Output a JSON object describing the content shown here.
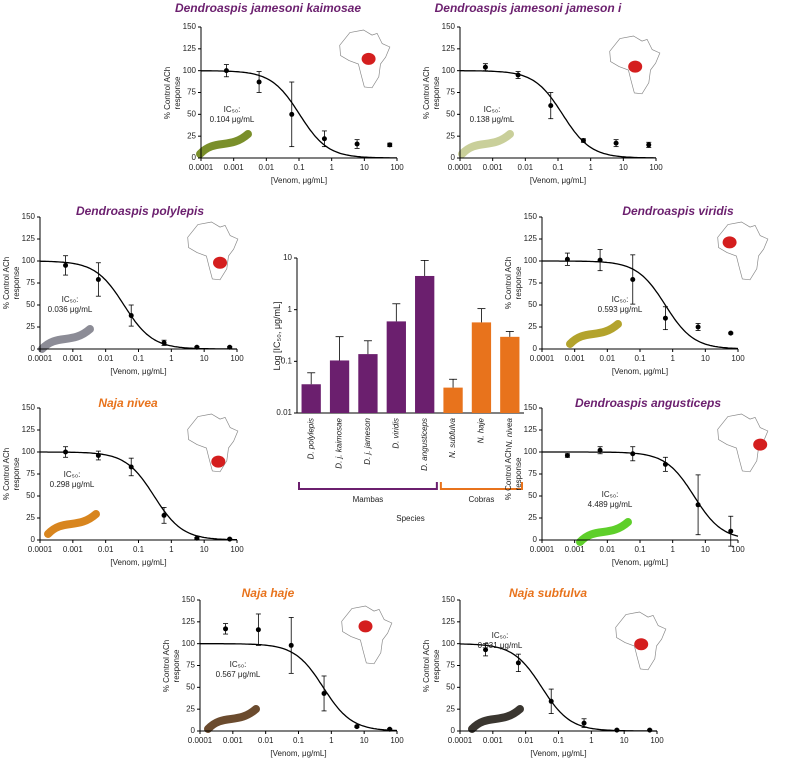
{
  "chart_data": [
    {
      "type": "scatter",
      "title": "Dendroaspis jamesoni kaimosae",
      "title_color": "#6b1f6e",
      "x_label": "[Venom, μg/mL]",
      "y_label": "% Control ACh response",
      "xscale": "log",
      "x": [
        0.0006,
        0.006,
        0.06,
        0.6,
        6,
        60
      ],
      "values": [
        100,
        87,
        50,
        22,
        16,
        15
      ],
      "errors": [
        7,
        12,
        37,
        9,
        5,
        2
      ],
      "color": "#000000",
      "ic50_label": "IC₅₀:",
      "ic50": {
        "value": 0.104,
        "label": "0.104 μg/mL"
      },
      "xlim": [
        0.0001,
        100
      ],
      "xticks": [
        0.0001,
        0.001,
        0.01,
        0.1,
        1,
        10,
        100
      ],
      "ylim": [
        0,
        150
      ],
      "yticks": [
        0,
        25,
        50,
        75,
        100,
        125,
        150
      ]
    },
    {
      "type": "scatter",
      "title": "Dendroaspis jamesoni jameson i",
      "title_color": "#6b1f6e",
      "x_label": "[Venom, μg/mL]",
      "y_label": "% Control ACh response",
      "xscale": "log",
      "x": [
        0.0006,
        0.006,
        0.06,
        0.6,
        6,
        60
      ],
      "values": [
        104,
        95,
        60,
        20,
        17,
        15
      ],
      "errors": [
        4,
        4,
        15,
        2,
        4,
        3
      ],
      "color": "#000000",
      "ic50_label": "IC₅₀:",
      "ic50": {
        "value": 0.138,
        "label": "0.138 μg/mL"
      },
      "xlim": [
        0.0001,
        100
      ],
      "xticks": [
        0.0001,
        0.001,
        0.01,
        0.1,
        1,
        10,
        100
      ],
      "ylim": [
        0,
        150
      ],
      "yticks": [
        0,
        25,
        50,
        75,
        100,
        125,
        150
      ]
    },
    {
      "type": "scatter",
      "title": "Dendroaspis polylepis",
      "title_color": "#6b1f6e",
      "x_label": "[Venom, μg/mL]",
      "y_label": "% Control ACh response",
      "xscale": "log",
      "x": [
        0.0006,
        0.006,
        0.06,
        0.6,
        6,
        60
      ],
      "values": [
        95,
        79,
        38,
        7,
        2,
        2
      ],
      "errors": [
        11,
        19,
        12,
        3,
        1,
        1
      ],
      "color": "#000000",
      "ic50_label": "IC₅₀:",
      "ic50": {
        "value": 0.036,
        "label": "0.036 μg/mL"
      },
      "xlim": [
        0.0001,
        100
      ],
      "xticks": [
        0.0001,
        0.001,
        0.01,
        0.1,
        1,
        10,
        100
      ],
      "ylim": [
        0,
        150
      ],
      "yticks": [
        0,
        25,
        50,
        75,
        100,
        125,
        150
      ]
    },
    {
      "type": "scatter",
      "title": "Dendroaspis viridis",
      "title_color": "#6b1f6e",
      "x_label": "[Venom, μg/mL]",
      "y_label": "% Control ACh response",
      "xscale": "log",
      "x": [
        0.0006,
        0.006,
        0.06,
        0.6,
        6,
        60
      ],
      "values": [
        102,
        101,
        79,
        35,
        25,
        18
      ],
      "errors": [
        7,
        12,
        28,
        13,
        4,
        1
      ],
      "color": "#000000",
      "ic50_label": "IC₅₀:",
      "ic50": {
        "value": 0.593,
        "label": "0.593 μg/mL"
      },
      "xlim": [
        0.0001,
        100
      ],
      "xticks": [
        0.0001,
        0.001,
        0.01,
        0.1,
        1,
        10,
        100
      ],
      "ylim": [
        0,
        150
      ],
      "yticks": [
        0,
        25,
        50,
        75,
        100,
        125,
        150
      ]
    },
    {
      "type": "scatter",
      "title": "Naja nivea",
      "title_color": "#e8731c",
      "x_label": "[Venom, μg/mL]",
      "y_label": "% Control ACh response",
      "xscale": "log",
      "x": [
        0.0006,
        0.006,
        0.06,
        0.6,
        6,
        60
      ],
      "values": [
        100,
        96,
        83,
        28,
        2,
        1
      ],
      "errors": [
        6,
        5,
        10,
        9,
        1,
        1
      ],
      "color": "#000000",
      "ic50_label": "IC₅₀:",
      "ic50": {
        "value": 0.298,
        "label": "0.298 μg/mL"
      },
      "xlim": [
        0.0001,
        100
      ],
      "xticks": [
        0.0001,
        0.001,
        0.01,
        0.1,
        1,
        10,
        100
      ],
      "ylim": [
        0,
        150
      ],
      "yticks": [
        0,
        25,
        50,
        75,
        100,
        125,
        150
      ]
    },
    {
      "type": "scatter",
      "title": "Dendroaspis angusticeps",
      "title_color": "#6b1f6e",
      "x_label": "[Venom, μg/mL]",
      "y_label": "% Control ACh response",
      "xscale": "log",
      "x": [
        0.0006,
        0.006,
        0.06,
        0.6,
        6,
        60
      ],
      "values": [
        96,
        102,
        98,
        86,
        40,
        10
      ],
      "errors": [
        2,
        4,
        8,
        8,
        34,
        17
      ],
      "color": "#000000",
      "ic50_label": "IC₅₀:",
      "ic50": {
        "value": 4.489,
        "label": "4.489 μg/mL"
      },
      "xlim": [
        0.0001,
        100
      ],
      "xticks": [
        0.0001,
        0.001,
        0.01,
        0.1,
        1,
        10,
        100
      ],
      "ylim": [
        0,
        150
      ],
      "yticks": [
        0,
        25,
        50,
        75,
        100,
        125,
        150
      ]
    },
    {
      "type": "scatter",
      "title": "Naja haje",
      "title_color": "#e8731c",
      "x_label": "[Venom, μg/mL]",
      "y_label": "% Control ACh response",
      "xscale": "log",
      "x": [
        0.0006,
        0.006,
        0.06,
        0.6,
        6,
        60
      ],
      "values": [
        117,
        116,
        98,
        43,
        5,
        2
      ],
      "errors": [
        6,
        18,
        32,
        20,
        1,
        1
      ],
      "color": "#000000",
      "ic50_label": "IC₅₀:",
      "ic50": {
        "value": 0.567,
        "label": "0.567 μg/mL"
      },
      "xlim": [
        0.0001,
        100
      ],
      "xticks": [
        0.0001,
        0.001,
        0.01,
        0.1,
        1,
        10,
        100
      ],
      "ylim": [
        0,
        150
      ],
      "yticks": [
        0,
        25,
        50,
        75,
        100,
        125,
        150
      ]
    },
    {
      "type": "scatter",
      "title": "Naja subfulva",
      "title_color": "#e8731c",
      "x_label": "[Venom, μg/mL]",
      "y_label": "% Control ACh response",
      "xscale": "log",
      "x": [
        0.0006,
        0.006,
        0.06,
        0.6,
        6,
        60
      ],
      "values": [
        93,
        78,
        34,
        9,
        1,
        1
      ],
      "errors": [
        7,
        10,
        14,
        5,
        1,
        1
      ],
      "color": "#000000",
      "ic50_label": "IC₅₀:",
      "ic50": {
        "value": 0.031,
        "label": "0.031 μg/mL"
      },
      "xlim": [
        0.0001,
        100
      ],
      "xticks": [
        0.0001,
        0.001,
        0.01,
        0.1,
        1,
        10,
        100
      ],
      "ylim": [
        0,
        150
      ],
      "yticks": [
        0,
        25,
        50,
        75,
        100,
        125,
        150
      ]
    },
    {
      "type": "bar",
      "x_label": "Species",
      "y_label": "Log [IC₅₀, μg/mL]",
      "yscale": "log",
      "categories": [
        "D. polylepis",
        "D. j. kaimosae",
        "D. j. jameson",
        "D. viridis",
        "D. angusticeps",
        "N. subfulva",
        "N. haje",
        "N. nivea"
      ],
      "series": [
        {
          "name": "Mambas",
          "color": "#6b1f6e",
          "values": [
            0.036,
            0.104,
            0.138,
            0.593,
            4.489,
            null,
            null,
            null
          ],
          "errors": [
            0.024,
            0.196,
            0.112,
            0.707,
            4.5,
            null,
            null,
            null
          ]
        },
        {
          "name": "Cobras",
          "color": "#e8731c",
          "values": [
            null,
            null,
            null,
            null,
            null,
            0.031,
            0.567,
            0.298
          ],
          "errors": [
            null,
            null,
            null,
            null,
            null,
            0.014,
            0.48,
            0.08
          ]
        }
      ],
      "ylim": [
        0.01,
        10
      ],
      "yticks": [
        0.01,
        0.1,
        1,
        10
      ]
    }
  ]
}
